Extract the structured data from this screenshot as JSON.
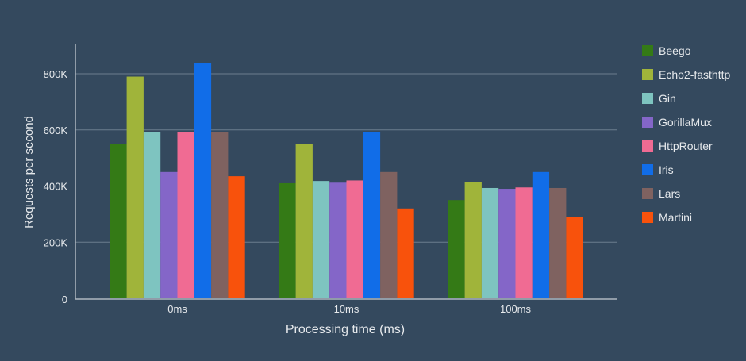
{
  "chart_data": {
    "type": "bar",
    "title": "",
    "xlabel": "Processing time (ms)",
    "ylabel": "Requests per second",
    "categories": [
      "0ms",
      "10ms",
      "100ms"
    ],
    "ylim": [
      0,
      900000
    ],
    "yticks": [
      0,
      200000,
      400000,
      600000,
      800000
    ],
    "ytick_labels": [
      "0",
      "200K",
      "400K",
      "600K",
      "800K"
    ],
    "grid": true,
    "legend_position": "right",
    "series": [
      {
        "name": "Beego",
        "color": "#347a16",
        "values": [
          550000,
          410000,
          350000
        ]
      },
      {
        "name": "Echo2-fasthttp",
        "color": "#a0b43a",
        "values": [
          790000,
          550000,
          415000
        ]
      },
      {
        "name": "Gin",
        "color": "#7ec4c0",
        "values": [
          593000,
          418000,
          393000
        ]
      },
      {
        "name": "GorillaMux",
        "color": "#8466c8",
        "values": [
          450000,
          412000,
          390000
        ]
      },
      {
        "name": "HttpRouter",
        "color": "#f06b93",
        "values": [
          593000,
          420000,
          395000
        ]
      },
      {
        "name": "Iris",
        "color": "#116de8",
        "values": [
          837000,
          592000,
          450000
        ]
      },
      {
        "name": "Lars",
        "color": "#7f6260",
        "values": [
          591000,
          450000,
          393000
        ]
      },
      {
        "name": "Martini",
        "color": "#f8520c",
        "values": [
          435000,
          320000,
          290000
        ]
      }
    ]
  }
}
